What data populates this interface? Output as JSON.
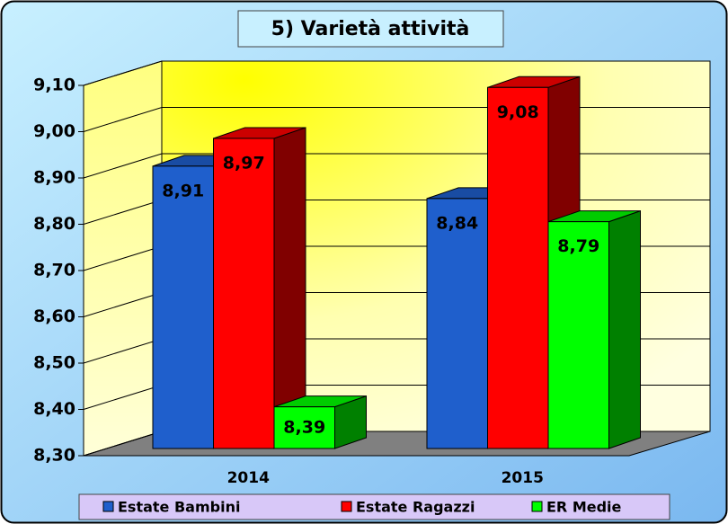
{
  "chart_data": {
    "type": "bar3d",
    "title": "5) Varietà attività",
    "categories": [
      "2014",
      "2015"
    ],
    "series": [
      {
        "name": "Estate Bambini",
        "color": "#1f5fcc",
        "values": [
          8.91,
          8.84
        ],
        "value_labels": [
          "8,91",
          "8,84"
        ]
      },
      {
        "name": "Estate Ragazzi",
        "color": "#ff0000",
        "values": [
          8.97,
          9.08
        ],
        "value_labels": [
          "8,97",
          "9,08"
        ]
      },
      {
        "name": "ER Medie",
        "color": "#00ff00",
        "values": [
          8.39,
          8.79
        ],
        "value_labels": [
          "8,39",
          "8,79"
        ]
      }
    ],
    "ylim": [
      8.3,
      9.1
    ],
    "yticks": [
      {
        "value": 8.3,
        "label": "8,30"
      },
      {
        "value": 8.4,
        "label": "8,40"
      },
      {
        "value": 8.5,
        "label": "8,50"
      },
      {
        "value": 8.6,
        "label": "8,60"
      },
      {
        "value": 8.7,
        "label": "8,70"
      },
      {
        "value": 8.8,
        "label": "8,80"
      },
      {
        "value": 8.9,
        "label": "8,90"
      },
      {
        "value": 9.0,
        "label": "9,00"
      },
      {
        "value": 9.1,
        "label": "9,10"
      }
    ],
    "grid": true
  }
}
